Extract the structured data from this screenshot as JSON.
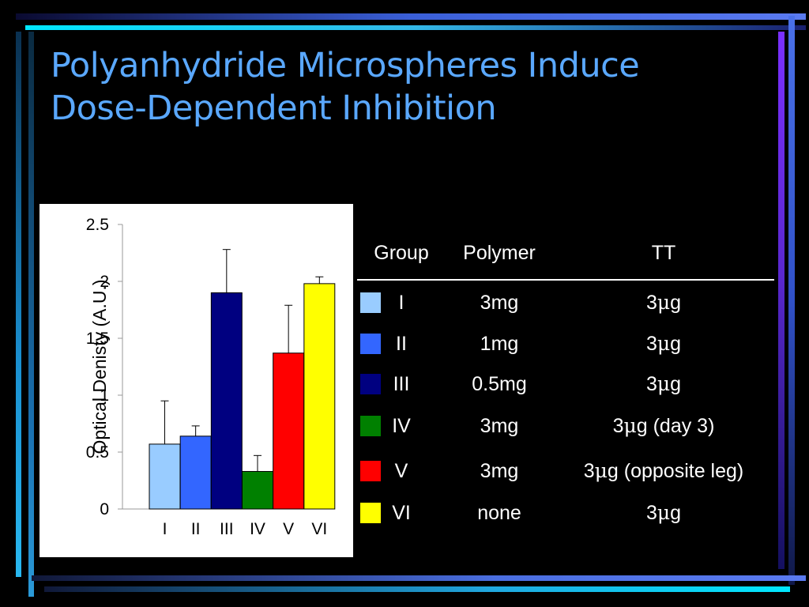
{
  "slide": {
    "title_line1": "Polyanhydride Microspheres Induce",
    "title_line2": "Dose-Dependent Inhibition"
  },
  "chart_data": {
    "type": "bar",
    "categories": [
      "I",
      "II",
      "III",
      "IV",
      "V",
      "VI"
    ],
    "values": [
      0.57,
      0.64,
      1.9,
      0.33,
      1.37,
      1.98
    ],
    "error_bars": [
      0.38,
      0.09,
      0.38,
      0.14,
      0.42,
      0.06
    ],
    "colors": [
      "#99ccff",
      "#3366ff",
      "#000080",
      "#008000",
      "#ff0000",
      "#ffff00"
    ],
    "ylabel": "Optical Denisty (A.U.)",
    "xlabel": "",
    "ylim": [
      0,
      2.5
    ],
    "yticks": [
      "0",
      "0.5",
      "1",
      "1.5",
      "2",
      "2.5"
    ],
    "grid": false
  },
  "table": {
    "headers": [
      "Group",
      "Polymer",
      "TT"
    ],
    "rows": [
      {
        "group": "I",
        "polymer": "3mg",
        "tt_num": "3",
        "tt_unit": "μ",
        "tt_rest": "g",
        "color": "#99ccff"
      },
      {
        "group": "II",
        "polymer": "1mg",
        "tt_num": "3",
        "tt_unit": "μ",
        "tt_rest": "g",
        "color": "#3366ff"
      },
      {
        "group": "III",
        "polymer": "0.5mg",
        "tt_num": "3",
        "tt_unit": "μ",
        "tt_rest": "g",
        "color": "#000080"
      },
      {
        "group": "IV",
        "polymer": "3mg",
        "tt_num": "3",
        "tt_unit": "μ",
        "tt_rest": "g (day 3)",
        "color": "#008000"
      },
      {
        "group": "V",
        "polymer": "3mg",
        "tt_num": "3",
        "tt_unit": "μ",
        "tt_rest": "g (opposite leg)",
        "color": "#ff0000"
      },
      {
        "group": "VI",
        "polymer": "none",
        "tt_num": "3",
        "tt_unit": "μ",
        "tt_rest": "g",
        "color": "#ffff00"
      }
    ]
  }
}
